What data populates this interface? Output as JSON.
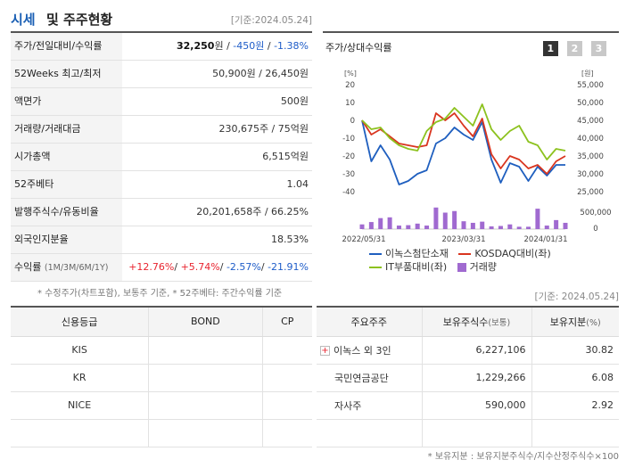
{
  "header": {
    "title_blue": "시세",
    "title_rest": "및 주주현황",
    "date": "[기준:2024.05.24]"
  },
  "quote_rows": {
    "price": {
      "label": "주가/전일대비/수익률",
      "price": "32,250",
      "unit": "원",
      "change": "-450원",
      "rate": "-1.38%"
    },
    "week52": {
      "label": "52Weeks 최고/최저",
      "value": "50,900원 / 26,450원"
    },
    "par": {
      "label": "액면가",
      "value": "500원"
    },
    "volume": {
      "label": "거래량/거래대금",
      "value": "230,675주 / 75억원"
    },
    "mktcap": {
      "label": "시가총액",
      "value": "6,515억원"
    },
    "beta": {
      "label": "52주베타",
      "value": "1.04"
    },
    "shares": {
      "label": "발행주식수/유동비율",
      "value": "20,201,658주 / 66.25%"
    },
    "foreign": {
      "label": "외국인지분율",
      "value": "18.53%"
    },
    "returns": {
      "label": "수익률",
      "label_sub": "(1M/3M/6M/1Y)",
      "r1": "+12.76%",
      "r2": "+5.74%",
      "r3": "-2.57%",
      "r4": "-21.91%"
    }
  },
  "footnote1": "* 수정주가(차트포함), 보통주 기준, * 52주베타: 주간수익률 기준",
  "chart_panel": {
    "title": "주가/상대수익률",
    "tabs": [
      "1",
      "2",
      "3"
    ],
    "active_tab": 0,
    "left_unit": "[%]",
    "right_unit": "[원]"
  },
  "chart_data": {
    "type": "line",
    "x_labels": [
      "2022/05/31",
      "2023/03/31",
      "2024/01/31"
    ],
    "left_axis": {
      "ticks": [
        20,
        10,
        0,
        -10,
        -20,
        -30,
        -40
      ],
      "range": [
        -40,
        20
      ],
      "unit": "%"
    },
    "right_axis": {
      "ticks": [
        55000,
        50000,
        45000,
        40000,
        35000,
        30000,
        25000
      ],
      "range": [
        25000,
        55000
      ],
      "unit": "원"
    },
    "volume_axis": {
      "ticks": [
        500000,
        0
      ],
      "range": [
        0,
        500000
      ]
    },
    "series": [
      {
        "name": "이녹스첨단소재",
        "color": "#1f5fbf",
        "axis": "left",
        "values": [
          0,
          -23,
          -14,
          -22,
          -36,
          -34,
          -30,
          -28,
          -13,
          -10,
          -4,
          -8,
          -11,
          -1,
          -22,
          -35,
          -24,
          -26,
          -34,
          -26,
          -31,
          -25,
          -25
        ]
      },
      {
        "name": "KOSDAQ대비(좌)",
        "color": "#d9351f",
        "axis": "left",
        "values": [
          0,
          -8,
          -5,
          -9,
          -13,
          -14,
          -15,
          -14,
          4,
          0,
          4,
          -3,
          -9,
          1,
          -19,
          -27,
          -20,
          -22,
          -27,
          -25,
          -30,
          -23,
          -20
        ]
      },
      {
        "name": "IT부품대비(좌)",
        "color": "#8dc21f",
        "axis": "left",
        "values": [
          0,
          -5,
          -4,
          -10,
          -14,
          -16,
          -17,
          -6,
          -1,
          1,
          7,
          2,
          -3,
          9,
          -5,
          -11,
          -6,
          -3,
          -12,
          -14,
          -22,
          -16,
          -17
        ]
      },
      {
        "name": "거래량",
        "color": "#a06ad0",
        "axis": "volume",
        "values": [
          120000,
          180000,
          280000,
          300000,
          90000,
          100000,
          140000,
          90000,
          550000,
          420000,
          460000,
          200000,
          160000,
          190000,
          70000,
          80000,
          120000,
          60000,
          60000,
          520000,
          90000,
          230000,
          160000
        ]
      }
    ],
    "legend_placement": "bottom",
    "grid": false
  },
  "date2": "[기준: 2024.05.24]",
  "credit": {
    "headers": [
      "신용등급",
      "BOND",
      "CP"
    ],
    "rows": [
      [
        "KIS",
        "",
        ""
      ],
      [
        "KR",
        "",
        ""
      ],
      [
        "NICE",
        "",
        ""
      ],
      [
        "",
        "",
        ""
      ]
    ]
  },
  "holders": {
    "headers": {
      "name": "주요주주",
      "shares": "보유주식수",
      "shares_unit": "(보통)",
      "ratio": "보유지분",
      "ratio_unit": "(%)"
    },
    "rows": [
      {
        "name": "이녹스 외 3인",
        "shares": "6,227,106",
        "ratio": "30.82"
      },
      {
        "name": "국민연금공단",
        "shares": "1,229,266",
        "ratio": "6.08"
      },
      {
        "name": "자사주",
        "shares": "590,000",
        "ratio": "2.92"
      }
    ]
  },
  "footnote2": "* 보유지분 : 보유지분주식수/지수산정주식수×100"
}
